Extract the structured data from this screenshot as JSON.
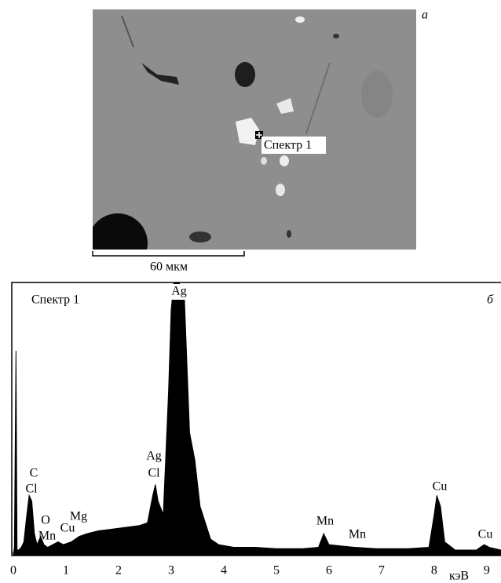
{
  "image": {
    "panel_label": "а",
    "marker_label": "Спектр 1",
    "scale_bar_label": "60 мкм"
  },
  "chart_data": {
    "type": "area",
    "title": "Спектр 1",
    "panel_label": "б",
    "x_label": "кэВ",
    "color": "#000000",
    "xlim": [
      -0.03,
      9.27
    ],
    "ylim": [
      0,
      100
    ],
    "xticks": [
      0,
      1,
      2,
      3,
      4,
      5,
      6,
      7,
      8,
      9
    ],
    "x": [
      0,
      0.02,
      0.05,
      0.07,
      0.1,
      0.15,
      0.2,
      0.25,
      0.3,
      0.35,
      0.4,
      0.45,
      0.52,
      0.58,
      0.65,
      0.75,
      0.85,
      0.95,
      1.1,
      1.25,
      1.4,
      1.6,
      1.8,
      2.0,
      2.2,
      2.4,
      2.55,
      2.65,
      2.7,
      2.75,
      2.85,
      2.95,
      3.0,
      3.05,
      3.15,
      3.25,
      3.35,
      3.45,
      3.55,
      3.65,
      3.75,
      3.9,
      4.2,
      4.6,
      5.0,
      5.5,
      5.8,
      5.9,
      6.0,
      6.5,
      6.9,
      7.5,
      7.9,
      8.0,
      8.05,
      8.12,
      8.2,
      8.4,
      8.8,
      8.95,
      9.05,
      9.27
    ],
    "values": [
      0,
      3,
      75,
      2,
      2,
      3,
      5,
      14,
      22,
      20,
      8,
      4,
      7,
      4,
      3,
      4,
      5,
      4,
      5,
      7,
      8,
      9,
      9.5,
      10,
      10.5,
      11,
      12,
      22,
      26,
      20,
      15,
      60,
      90,
      100,
      100,
      95,
      45,
      35,
      18,
      12,
      6,
      4,
      3,
      3,
      2.5,
      2.5,
      3,
      8,
      4,
      3,
      2.5,
      2.5,
      3,
      15,
      22,
      18,
      5,
      2,
      2,
      4,
      3,
      2
    ],
    "annotations": [
      "Ag",
      "Ag",
      "Cl",
      "C",
      "Cl",
      "O",
      "Mn",
      "Cu",
      "Mg",
      "Mn",
      "Mn",
      "Cu",
      "Cu"
    ]
  }
}
